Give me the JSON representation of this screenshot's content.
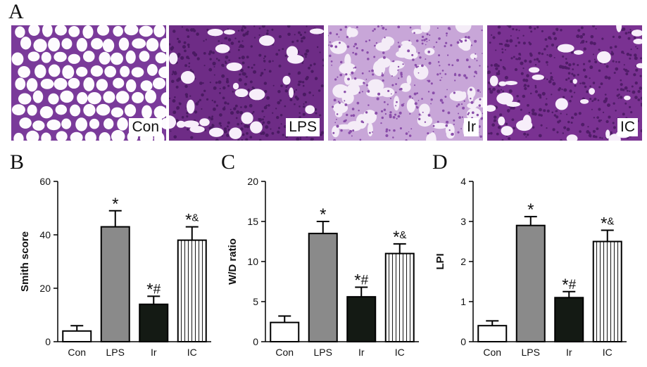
{
  "panel_letters": {
    "a": "A",
    "b": "B",
    "c": "C",
    "d": "D"
  },
  "micrographs": [
    {
      "label": "Con",
      "tissue": "#f4eaf6",
      "stain": "#7a3a9a",
      "pattern": "alveolar-open"
    },
    {
      "label": "LPS",
      "tissue": "#6e2c86",
      "stain": "#4a1a62",
      "pattern": "dense"
    },
    {
      "label": "Ir",
      "tissue": "#c8a6d8",
      "stain": "#8a4eaa",
      "pattern": "mixed"
    },
    {
      "label": "IC",
      "tissue": "#7a3292",
      "stain": "#501c68",
      "pattern": "dense"
    }
  ],
  "chart_data": [
    {
      "type": "bar",
      "panel": "B",
      "categories": [
        "Con",
        "LPS",
        "Ir",
        "IC"
      ],
      "values": [
        4,
        43,
        14,
        38
      ],
      "errors": [
        2,
        6,
        3,
        5
      ],
      "annotations": [
        "",
        "*",
        "*#",
        "*&"
      ],
      "ylabel": "Smith score",
      "ylim": [
        0,
        60
      ],
      "yticks": [
        0,
        20,
        40,
        60
      ],
      "fills": [
        "white",
        "gray",
        "black",
        "vstripe"
      ]
    },
    {
      "type": "bar",
      "panel": "C",
      "categories": [
        "Con",
        "LPS",
        "Ir",
        "IC"
      ],
      "values": [
        2.4,
        13.5,
        5.6,
        11.0
      ],
      "errors": [
        0.8,
        1.5,
        1.2,
        1.2
      ],
      "annotations": [
        "",
        "*",
        "*#",
        "*&"
      ],
      "ylabel": "W/D ratio",
      "ylim": [
        0,
        20
      ],
      "yticks": [
        0,
        5,
        10,
        15,
        20
      ],
      "fills": [
        "white",
        "gray",
        "black",
        "vstripe"
      ]
    },
    {
      "type": "bar",
      "panel": "D",
      "categories": [
        "Con",
        "LPS",
        "Ir",
        "IC"
      ],
      "values": [
        0.4,
        2.9,
        1.1,
        2.5
      ],
      "errors": [
        0.12,
        0.22,
        0.15,
        0.28
      ],
      "annotations": [
        "",
        "*",
        "*#",
        "*&"
      ],
      "ylabel": "LPI",
      "ylim": [
        0,
        4
      ],
      "yticks": [
        0,
        1,
        2,
        3,
        4
      ],
      "fills": [
        "white",
        "gray",
        "black",
        "vstripe"
      ]
    }
  ]
}
